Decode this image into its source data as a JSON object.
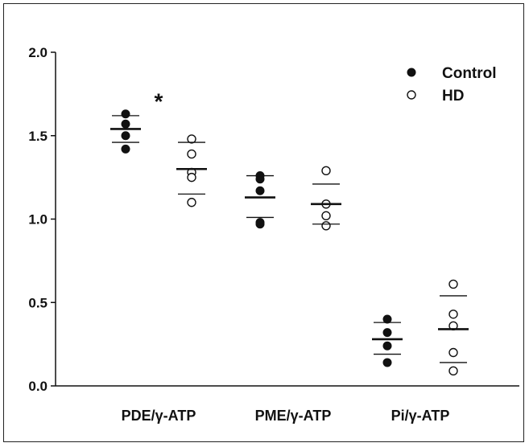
{
  "chart_data": {
    "type": "scatter",
    "title": "",
    "xlabel": "",
    "ylabel": "",
    "ylim": [
      0.0,
      2.0
    ],
    "yticks": [
      "0.0",
      "0.5",
      "1.0",
      "1.5",
      "2.0"
    ],
    "categories": [
      "PDE/γ-ATP",
      "PME/γ-ATP",
      "Pi/γ-ATP"
    ],
    "legend": {
      "position": "top-right"
    },
    "grid": false,
    "series": [
      {
        "name": "Control",
        "marker": "filled-circle",
        "color": "#111111",
        "groups": [
          {
            "category": "PDE/γ-ATP",
            "points": [
              1.63,
              1.57,
              1.5,
              1.42
            ],
            "mean": 1.54,
            "sd_upper": 1.62,
            "sd_lower": 1.46
          },
          {
            "category": "PME/γ-ATP",
            "points": [
              1.26,
              1.24,
              1.17,
              0.98,
              0.97
            ],
            "mean": 1.13,
            "sd_upper": 1.26,
            "sd_lower": 1.01
          },
          {
            "category": "Pi/γ-ATP",
            "points": [
              0.4,
              0.32,
              0.24,
              0.14
            ],
            "mean": 0.28,
            "sd_upper": 0.38,
            "sd_lower": 0.19
          }
        ]
      },
      {
        "name": "HD",
        "marker": "open-circle",
        "color": "#111111",
        "groups": [
          {
            "category": "PDE/γ-ATP",
            "points": [
              1.48,
              1.39,
              1.28,
              1.25,
              1.1
            ],
            "mean": 1.3,
            "sd_upper": 1.46,
            "sd_lower": 1.15
          },
          {
            "category": "PME/γ-ATP",
            "points": [
              1.29,
              1.09,
              1.02,
              0.96
            ],
            "mean": 1.09,
            "sd_upper": 1.21,
            "sd_lower": 0.97
          },
          {
            "category": "Pi/γ-ATP",
            "points": [
              0.61,
              0.43,
              0.36,
              0.2,
              0.09
            ],
            "mean": 0.34,
            "sd_upper": 0.54,
            "sd_lower": 0.14
          }
        ]
      }
    ],
    "annotations": [
      {
        "text": "*",
        "category": "PDE/γ-ATP",
        "y": 1.7
      }
    ]
  }
}
